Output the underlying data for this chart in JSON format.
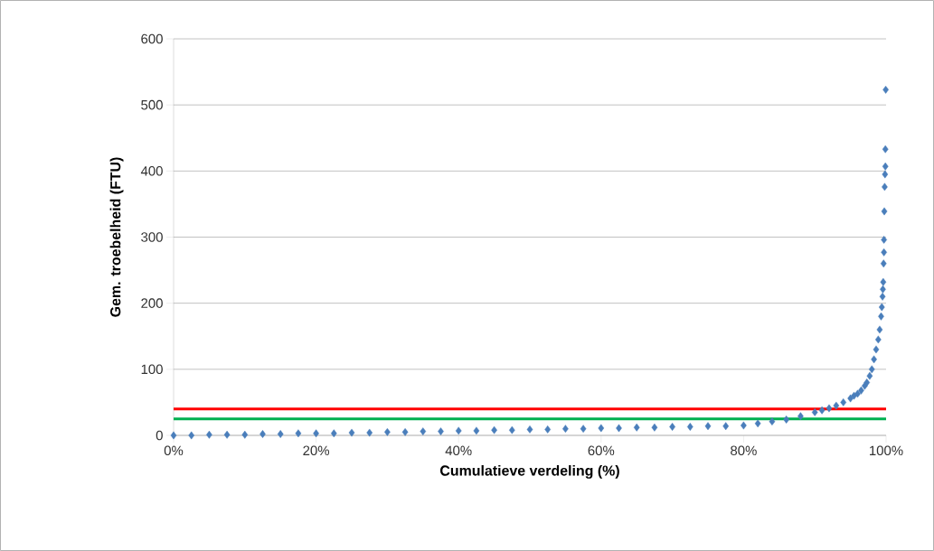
{
  "chart_data": {
    "type": "scatter",
    "xlabel": "Cumulatieve verdeling (%)",
    "ylabel": "Gem. troebelheid (FTU)",
    "x": [
      0,
      2.5,
      5,
      7.5,
      10,
      12.5,
      15,
      17.5,
      20,
      22.5,
      25,
      27.5,
      30,
      32.5,
      35,
      37.5,
      40,
      42.5,
      45,
      47.5,
      50,
      52.5,
      55,
      57.5,
      60,
      62.5,
      65,
      67.5,
      70,
      72.5,
      75,
      77.5,
      80,
      82,
      84,
      86,
      88,
      90,
      91,
      92,
      93,
      94,
      95,
      95.5,
      96,
      96.5,
      97,
      97.3,
      97.7,
      98,
      98.3,
      98.6,
      98.9,
      99.1,
      99.3,
      99.4,
      99.5,
      99.55,
      99.6,
      99.65,
      99.7,
      99.7,
      99.75,
      99.8,
      99.85,
      99.9,
      99.9,
      99.95
    ],
    "series": [
      {
        "color": "#4a7ebb",
        "values": [
          0,
          0,
          1,
          1,
          1,
          2,
          2,
          3,
          3,
          3,
          4,
          4,
          5,
          5,
          6,
          6,
          7,
          7,
          8,
          8,
          9,
          9,
          10,
          10,
          11,
          11,
          12,
          12,
          13,
          13,
          14,
          14,
          15,
          18,
          21,
          24,
          29,
          35,
          38,
          41,
          45,
          50,
          56,
          60,
          63,
          68,
          75,
          80,
          90,
          100,
          115,
          130,
          145,
          160,
          180,
          194,
          210,
          221,
          232,
          260,
          277,
          296,
          339,
          376,
          395,
          407,
          433,
          523
        ]
      }
    ],
    "xlim": [
      0,
      100
    ],
    "xticks": [
      {
        "value": 0,
        "label": "0%"
      },
      {
        "value": 20,
        "label": "20%"
      },
      {
        "value": 40,
        "label": "40%"
      },
      {
        "value": 60,
        "label": "60%"
      },
      {
        "value": 80,
        "label": "80%"
      },
      {
        "value": 100,
        "label": "100%"
      }
    ],
    "ylim": [
      0,
      600
    ],
    "yticks": [
      0,
      100,
      200,
      300,
      400,
      500,
      600
    ],
    "ref_lines": [
      {
        "axis": "y",
        "value": 40,
        "color": "#ff0000"
      },
      {
        "axis": "y",
        "value": 25,
        "color": "#00b050"
      }
    ],
    "grid": "y",
    "marker": "diamond"
  }
}
